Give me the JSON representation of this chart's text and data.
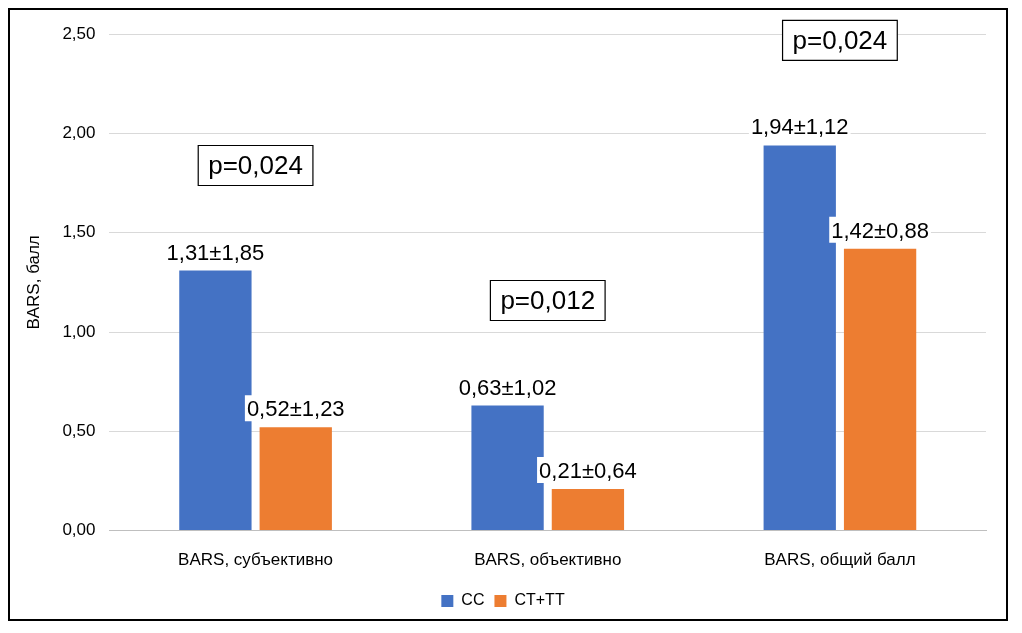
{
  "chart_data": {
    "type": "bar",
    "ylabel": "BARS, балл",
    "categories": [
      "BARS, субъективно",
      "BARS, объективно",
      "BARS, общий балл"
    ],
    "series": [
      {
        "name": "CC",
        "color": "#4472c4",
        "values": [
          1.31,
          0.63,
          1.94
        ],
        "value_labels": [
          "1,31±1,85",
          "0,63±1,02",
          "1,94±1,12"
        ]
      },
      {
        "name": "CT+TT",
        "color": "#ed7d31",
        "values": [
          0.52,
          0.21,
          1.42
        ],
        "value_labels": [
          "0,52±1,23",
          "0,21±0,64",
          "1,42±0,88"
        ]
      }
    ],
    "ylim": [
      0,
      2.5
    ],
    "yticks": [
      {
        "value": 0,
        "label": "0,00"
      },
      {
        "value": 0.5,
        "label": "0,50"
      },
      {
        "value": 1,
        "label": "1,00"
      },
      {
        "value": 1.5,
        "label": "1,50"
      },
      {
        "value": 2,
        "label": "2,00"
      },
      {
        "value": 2.5,
        "label": "2,50"
      }
    ],
    "annotations": [
      "p=0,024",
      "p=0,012",
      "p=0,024"
    ],
    "grid": "y",
    "legend": "bottom"
  }
}
